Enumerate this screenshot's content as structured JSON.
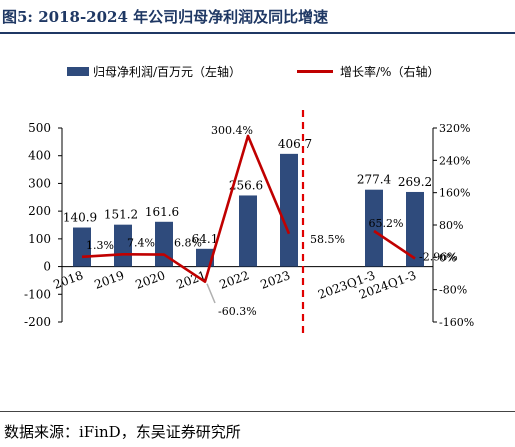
{
  "title": "图5:  2018-2024 年公司归母净利润及同比增速",
  "colors": {
    "bar": "#2f4b7c",
    "line": "#c00000",
    "title": "#1f3864",
    "divider": "#e00000",
    "neg_segment": "#b0b0b0"
  },
  "legend": {
    "bar_label": "归母净利润/百万元（左轴）",
    "line_label": "增长率/%（右轴）"
  },
  "source": "数据来源：iFinD，东吴证券研究所",
  "chart_data": {
    "type": "bar",
    "categories": [
      "2018",
      "2019",
      "2020",
      "2021",
      "2022",
      "2023",
      "2023Q1-3",
      "2024Q1-3"
    ],
    "series": [
      {
        "name": "归母净利润/百万元（左轴）",
        "type": "bar",
        "axis": "left",
        "values": [
          140.9,
          151.2,
          161.6,
          64.1,
          256.6,
          406.7,
          277.4,
          269.2
        ],
        "labels": [
          "140.9",
          "151.2",
          "161.6",
          "64.1",
          "256.6",
          "406.7",
          "277.4",
          "269.2"
        ]
      },
      {
        "name": "增长率/%（右轴）",
        "type": "line",
        "axis": "right",
        "values": [
          1.3,
          7.4,
          6.8,
          -60.3,
          300.4,
          58.5,
          65.2,
          -2.96
        ],
        "labels": [
          "1.3%",
          "7.4%",
          "6.8%",
          "-60.3%",
          "300.4%",
          "58.5%",
          "65.2%",
          "-2.96%"
        ]
      }
    ],
    "line_segments": [
      [
        0,
        5
      ],
      [
        6,
        7
      ]
    ],
    "y_left": {
      "min": -200,
      "max": 500,
      "ticks": [
        "500",
        "400",
        "300",
        "200",
        "100",
        "0",
        "-100",
        "-200"
      ],
      "tick_values": [
        500,
        400,
        300,
        200,
        100,
        0,
        -100,
        -200
      ]
    },
    "y_right": {
      "min": -160,
      "max": 320,
      "ticks": [
        "320%",
        "240%",
        "160%",
        "80%",
        "0%",
        "-80%",
        "-160%"
      ],
      "tick_values": [
        320,
        240,
        160,
        80,
        0,
        -80,
        -160
      ]
    },
    "x_tick_labels": [
      "2018",
      "2019",
      "2020",
      "2021",
      "2022",
      "2023",
      "2023Q1-3",
      "2024Q1-3"
    ],
    "divider_after": "2023",
    "grid": false,
    "legend_position": "top"
  }
}
